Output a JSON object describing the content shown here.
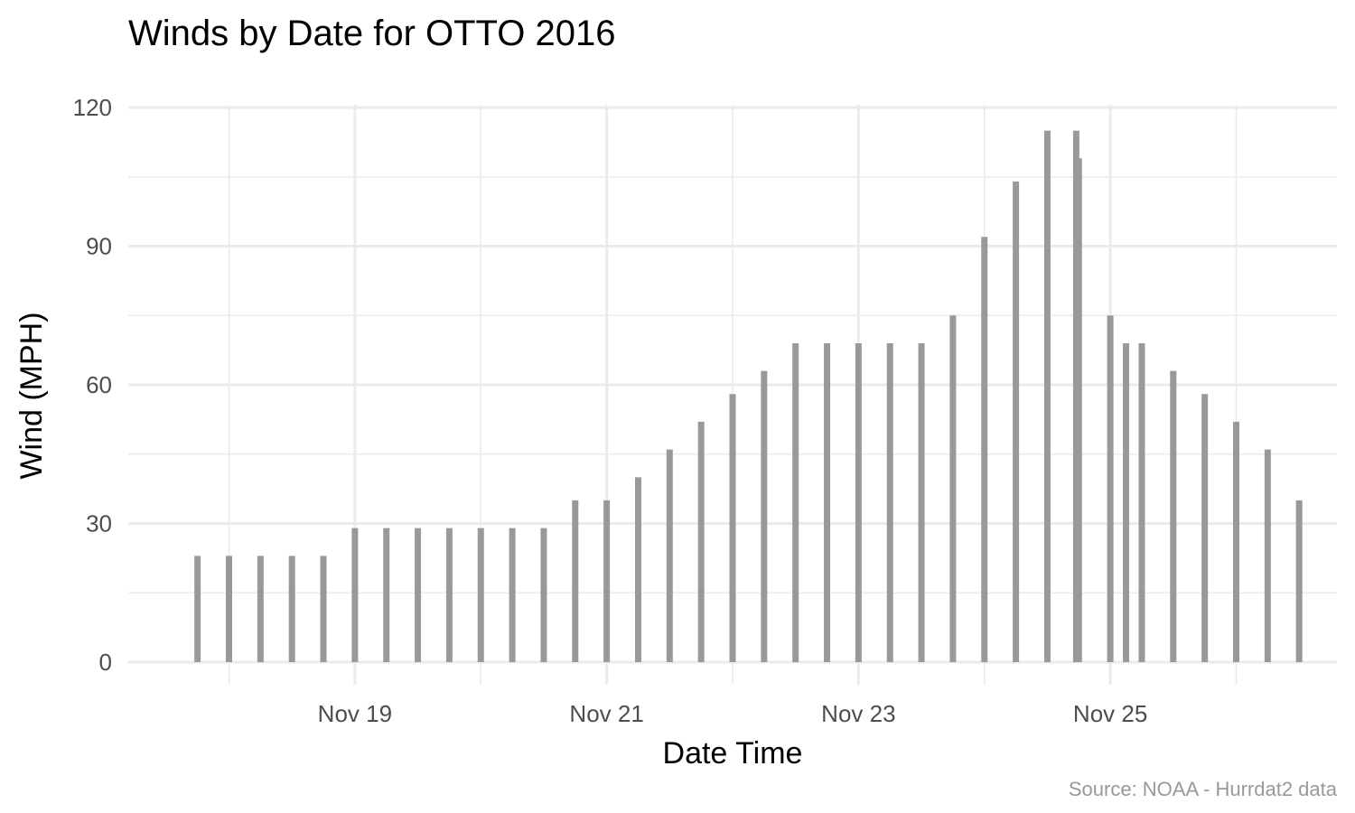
{
  "chart_data": {
    "type": "bar",
    "title": "Winds by Date for OTTO 2016",
    "xlabel": "Date Time",
    "ylabel": "Wind (MPH)",
    "caption": "Source: NOAA - Hurrdat2 data",
    "ylim": [
      0,
      120
    ],
    "xlim": [
      "2016-11-17 04:48",
      "2016-11-26 19:12"
    ],
    "y_ticks": [
      0,
      30,
      60,
      90,
      120
    ],
    "x_ticks": [
      {
        "date": "2016-11-19",
        "label": "Nov 19"
      },
      {
        "date": "2016-11-21",
        "label": "Nov 21"
      },
      {
        "date": "2016-11-23",
        "label": "Nov 23"
      },
      {
        "date": "2016-11-25",
        "label": "Nov 25"
      }
    ],
    "grid": true,
    "bar_color": "#999999",
    "grid_color": "#ebebeb",
    "points": [
      {
        "datetime": "2016-11-17 18:00",
        "wind": 23
      },
      {
        "datetime": "2016-11-18 00:00",
        "wind": 23
      },
      {
        "datetime": "2016-11-18 06:00",
        "wind": 23
      },
      {
        "datetime": "2016-11-18 12:00",
        "wind": 23
      },
      {
        "datetime": "2016-11-18 18:00",
        "wind": 23
      },
      {
        "datetime": "2016-11-19 00:00",
        "wind": 29
      },
      {
        "datetime": "2016-11-19 06:00",
        "wind": 29
      },
      {
        "datetime": "2016-11-19 12:00",
        "wind": 29
      },
      {
        "datetime": "2016-11-19 18:00",
        "wind": 29
      },
      {
        "datetime": "2016-11-20 00:00",
        "wind": 29
      },
      {
        "datetime": "2016-11-20 06:00",
        "wind": 29
      },
      {
        "datetime": "2016-11-20 12:00",
        "wind": 29
      },
      {
        "datetime": "2016-11-20 18:00",
        "wind": 35
      },
      {
        "datetime": "2016-11-21 00:00",
        "wind": 35
      },
      {
        "datetime": "2016-11-21 06:00",
        "wind": 40
      },
      {
        "datetime": "2016-11-21 12:00",
        "wind": 46
      },
      {
        "datetime": "2016-11-21 18:00",
        "wind": 52
      },
      {
        "datetime": "2016-11-22 00:00",
        "wind": 58
      },
      {
        "datetime": "2016-11-22 06:00",
        "wind": 63
      },
      {
        "datetime": "2016-11-22 12:00",
        "wind": 69
      },
      {
        "datetime": "2016-11-22 18:00",
        "wind": 69
      },
      {
        "datetime": "2016-11-23 00:00",
        "wind": 69
      },
      {
        "datetime": "2016-11-23 06:00",
        "wind": 69
      },
      {
        "datetime": "2016-11-23 12:00",
        "wind": 69
      },
      {
        "datetime": "2016-11-23 18:00",
        "wind": 75
      },
      {
        "datetime": "2016-11-24 00:00",
        "wind": 92
      },
      {
        "datetime": "2016-11-24 06:00",
        "wind": 104
      },
      {
        "datetime": "2016-11-24 12:00",
        "wind": 115
      },
      {
        "datetime": "2016-11-24 17:30",
        "wind": 115
      },
      {
        "datetime": "2016-11-24 18:00",
        "wind": 109
      },
      {
        "datetime": "2016-11-25 00:00",
        "wind": 75
      },
      {
        "datetime": "2016-11-25 03:00",
        "wind": 69
      },
      {
        "datetime": "2016-11-25 06:00",
        "wind": 69
      },
      {
        "datetime": "2016-11-25 12:00",
        "wind": 63
      },
      {
        "datetime": "2016-11-25 18:00",
        "wind": 58
      },
      {
        "datetime": "2016-11-26 00:00",
        "wind": 52
      },
      {
        "datetime": "2016-11-26 06:00",
        "wind": 46
      },
      {
        "datetime": "2016-11-26 12:00",
        "wind": 35
      }
    ]
  }
}
